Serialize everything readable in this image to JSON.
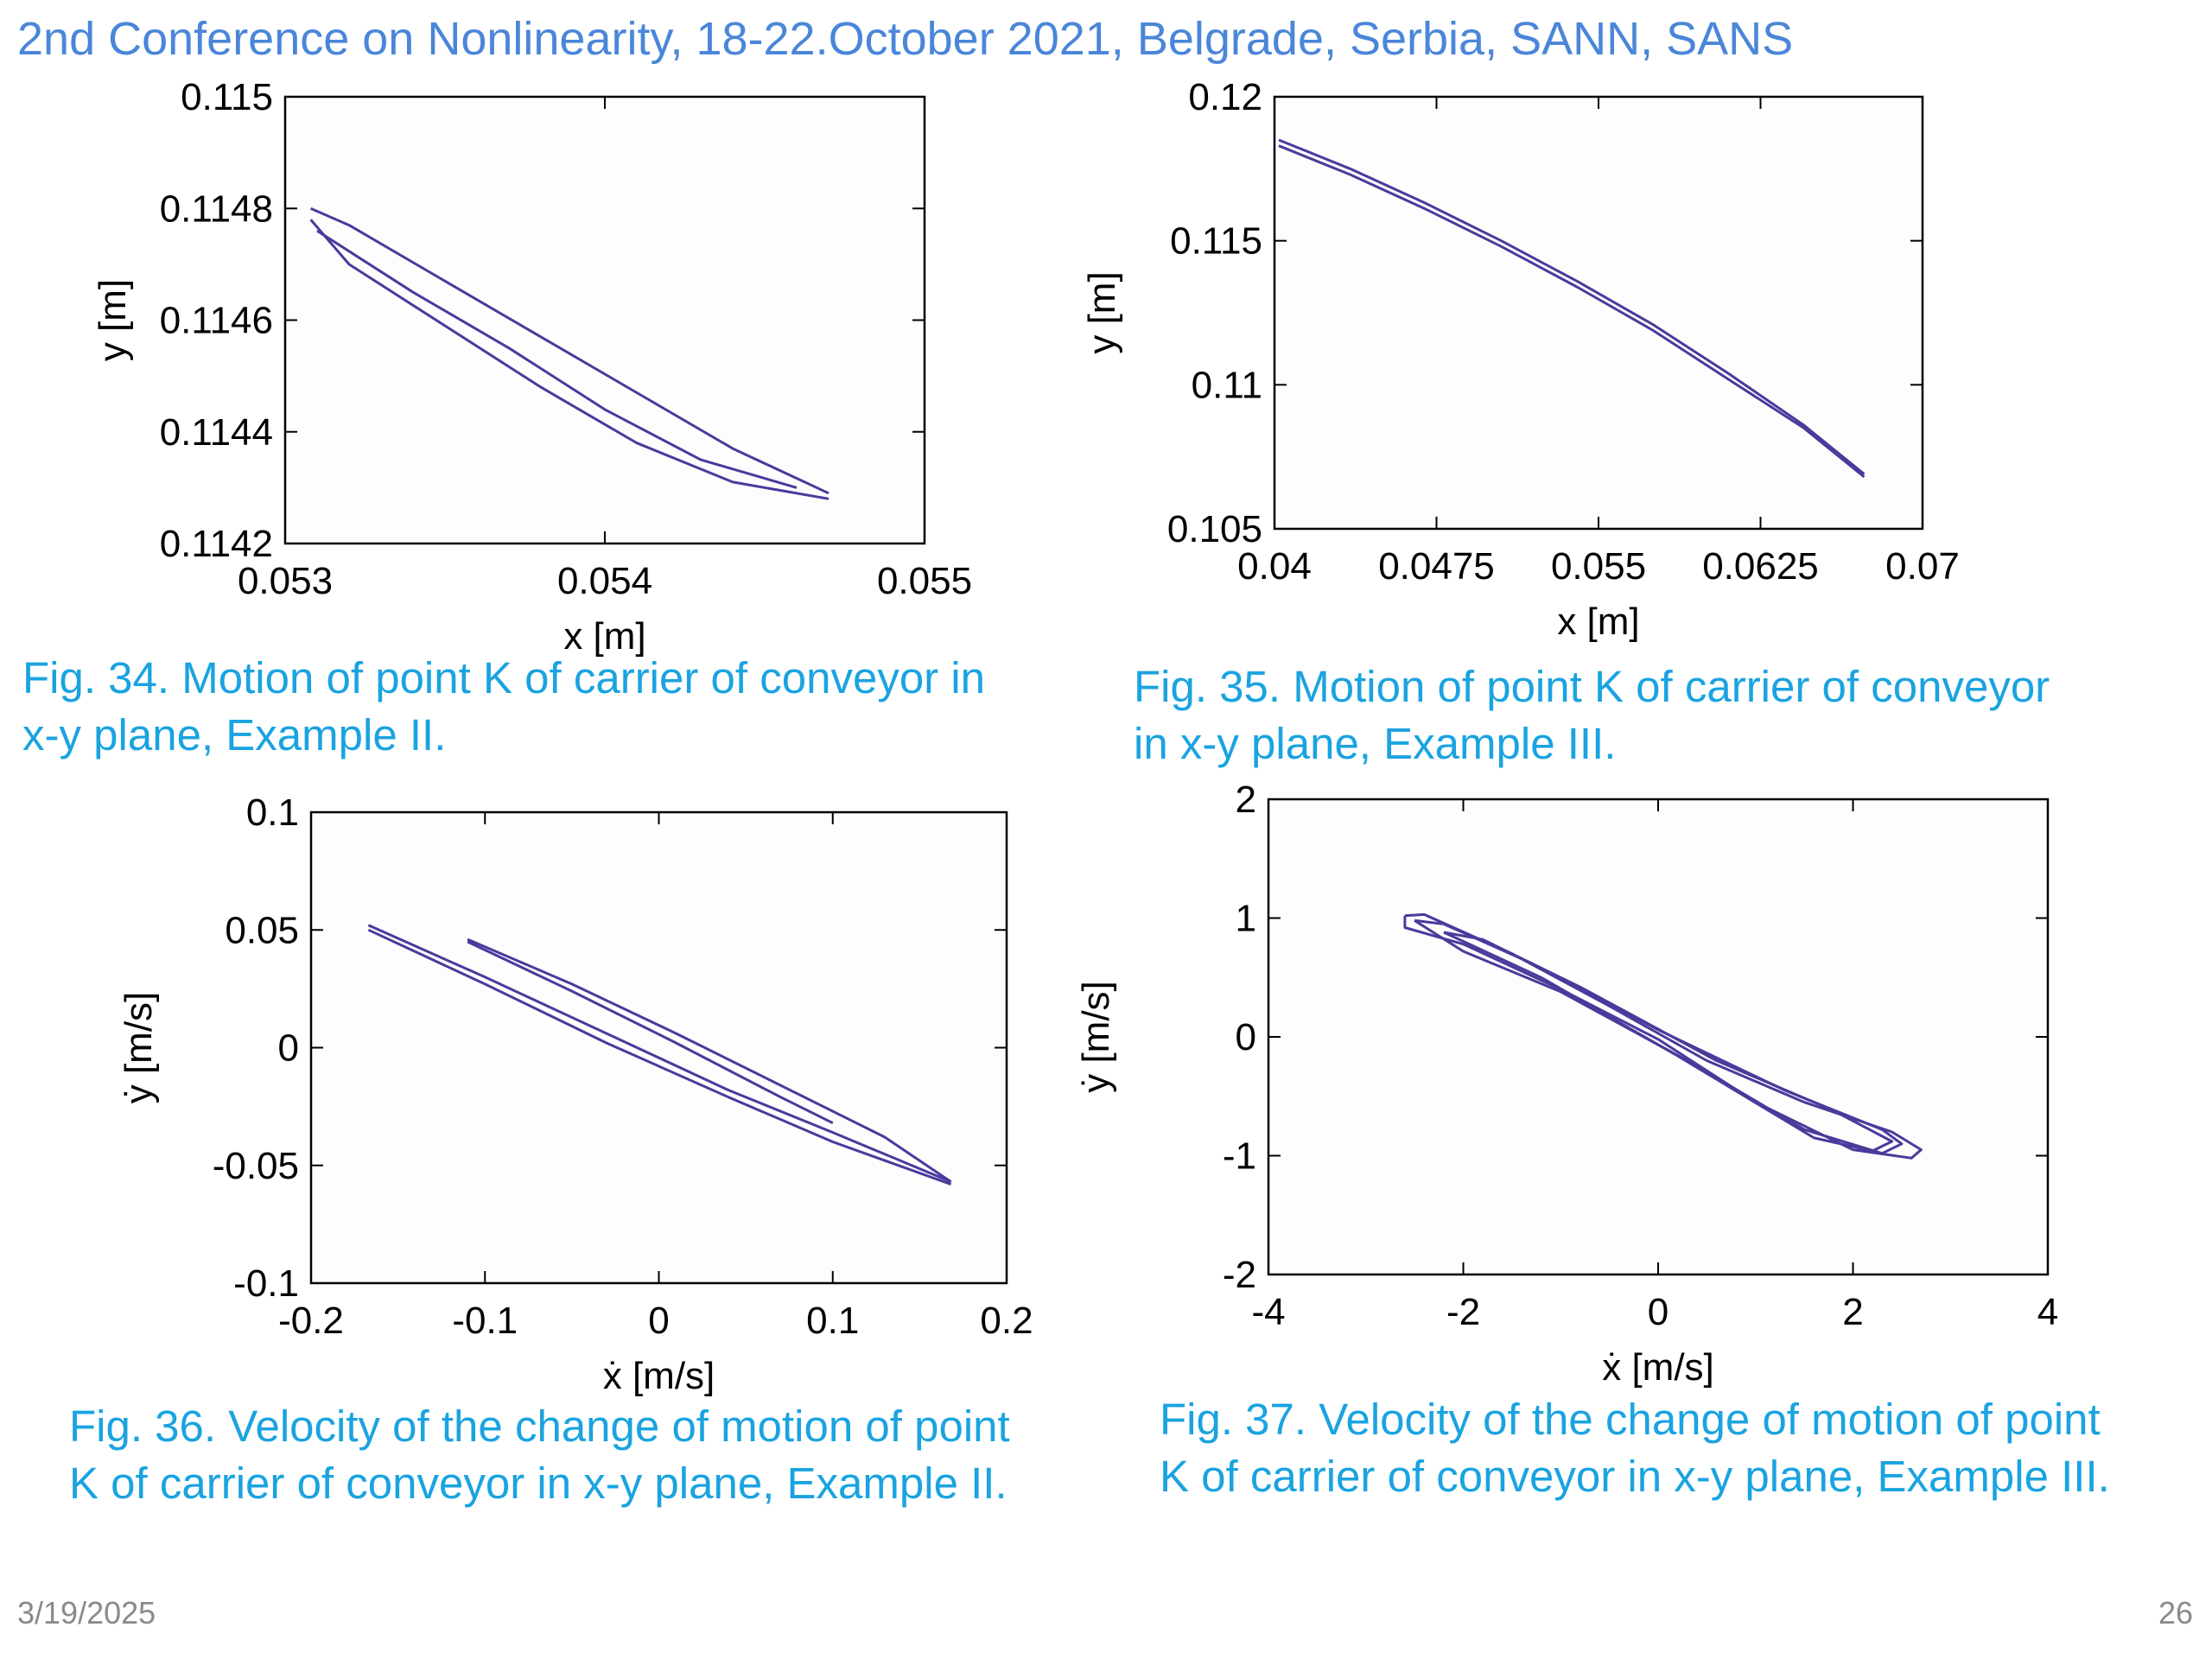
{
  "header": {
    "title": "2nd Conference on Nonlinearity, 18-22.October 2021, Belgrade, Serbia, SANN, SANS"
  },
  "captions": {
    "fig34_l1": "Fig. 34. Motion of point K of carrier of conveyor in",
    "fig34_l2": "x-y plane, Example II.",
    "fig35_l1": "Fig. 35. Motion of point K of carrier of conveyor",
    "fig35_l2": "in x-y plane, Example III.",
    "fig36_l1": "Fig. 36. Velocity of the change of motion of point",
    "fig36_l2": "K of carrier of conveyor in x-y plane, Example II.",
    "fig37_l1": "Fig. 37. Velocity of the change of motion of point",
    "fig37_l2": "K of carrier of conveyor in x-y plane, Example III."
  },
  "footer": {
    "date": "3/19/2025",
    "page": "26"
  },
  "chart_data": [
    {
      "id": "fig34",
      "type": "line",
      "xlabel": "x [m]",
      "ylabel": "y [m]",
      "xlim": [
        0.053,
        0.055
      ],
      "ylim": [
        0.1142,
        0.115
      ],
      "xticks": [
        0.053,
        0.054,
        0.055
      ],
      "xtick_labels": [
        "0.053",
        "0.054",
        "0.055"
      ],
      "yticks": [
        0.1142,
        0.1144,
        0.1146,
        0.1148,
        0.115
      ],
      "ytick_labels": [
        "0.1142",
        "0.1144",
        "0.1146",
        "0.1148",
        "0.115"
      ],
      "color": "#4a3a9c",
      "series": [
        {
          "x": [
            0.05308,
            0.0532,
            0.0535,
            0.0538,
            0.0541,
            0.0544,
            0.0547
          ],
          "y": [
            0.1148,
            0.11477,
            0.11467,
            0.11457,
            0.11447,
            0.11437,
            0.11429
          ]
        },
        {
          "x": [
            0.05308,
            0.0532,
            0.0535,
            0.0538,
            0.0541,
            0.0544,
            0.0547
          ],
          "y": [
            0.11478,
            0.1147,
            0.11459,
            0.11448,
            0.11438,
            0.11431,
            0.11428
          ]
        },
        {
          "x": [
            0.0531,
            0.0534,
            0.0537,
            0.054,
            0.0543,
            0.0546
          ],
          "y": [
            0.11476,
            0.11465,
            0.11455,
            0.11444,
            0.11435,
            0.1143
          ]
        }
      ]
    },
    {
      "id": "fig35",
      "type": "line",
      "xlabel": "x [m]",
      "ylabel": "y [m]",
      "xlim": [
        0.04,
        0.07
      ],
      "ylim": [
        0.105,
        0.12
      ],
      "xticks": [
        0.04,
        0.0475,
        0.055,
        0.0625,
        0.07
      ],
      "xtick_labels": [
        "0.04",
        "0.0475",
        "0.055",
        "0.0625",
        "0.07"
      ],
      "yticks": [
        0.105,
        0.11,
        0.115,
        0.12
      ],
      "ytick_labels": [
        "0.105",
        "0.11",
        "0.115",
        "0.12"
      ],
      "color": "#4a3a9c",
      "series": [
        {
          "x": [
            0.0402,
            0.0435,
            0.047,
            0.0505,
            0.054,
            0.0575,
            0.061,
            0.0645,
            0.0673
          ],
          "y": [
            0.1185,
            0.1175,
            0.1163,
            0.115,
            0.1136,
            0.1121,
            0.1104,
            0.1086,
            0.1069
          ]
        },
        {
          "x": [
            0.0402,
            0.0435,
            0.047,
            0.0505,
            0.054,
            0.0575,
            0.061,
            0.0645,
            0.0673
          ],
          "y": [
            0.1183,
            0.1173,
            0.1161,
            0.1148,
            0.1134,
            0.1119,
            0.1102,
            0.1085,
            0.1068
          ]
        }
      ]
    },
    {
      "id": "fig36",
      "type": "line",
      "xlabel": "ẋ [m/s]",
      "ylabel": "ẏ [m/s]",
      "xlim": [
        -0.2,
        0.2
      ],
      "ylim": [
        -0.1,
        0.1
      ],
      "xticks": [
        -0.2,
        -0.1,
        0,
        0.1,
        0.2
      ],
      "xtick_labels": [
        "-0.2",
        "-0.1",
        "0",
        "0.1",
        "0.2"
      ],
      "yticks": [
        -0.1,
        -0.05,
        0,
        0.05,
        0.1
      ],
      "ytick_labels": [
        "-0.1",
        "-0.05",
        "0",
        "0.05",
        "0.1"
      ],
      "color": "#4a3a9c",
      "series": [
        {
          "x": [
            -0.167,
            -0.1,
            -0.03,
            0.04,
            0.1,
            0.168
          ],
          "y": [
            0.052,
            0.03,
            0.006,
            -0.018,
            -0.036,
            -0.057
          ]
        },
        {
          "x": [
            -0.167,
            -0.1,
            -0.03,
            0.04,
            0.1,
            0.168
          ],
          "y": [
            0.05,
            0.027,
            0.002,
            -0.021,
            -0.04,
            -0.058
          ]
        },
        {
          "x": [
            -0.11,
            -0.05,
            0.01,
            0.07,
            0.13,
            0.168
          ],
          "y": [
            0.046,
            0.027,
            0.006,
            -0.016,
            -0.038,
            -0.057
          ]
        },
        {
          "x": [
            -0.11,
            -0.05,
            0.01,
            0.07,
            0.1
          ],
          "y": [
            0.045,
            0.024,
            0.002,
            -0.021,
            -0.032
          ]
        }
      ]
    },
    {
      "id": "fig37",
      "type": "line",
      "xlabel": "ẋ [m/s]",
      "ylabel": "ẏ [m/s]",
      "xlim": [
        -4,
        4
      ],
      "ylim": [
        -2,
        2
      ],
      "xticks": [
        -4,
        -2,
        0,
        2,
        4
      ],
      "xtick_labels": [
        "-4",
        "-2",
        "0",
        "2",
        "4"
      ],
      "yticks": [
        -2,
        -1,
        0,
        1,
        2
      ],
      "ytick_labels": [
        "-2",
        "-1",
        "0",
        "1",
        "2"
      ],
      "color": "#4a3a9c",
      "series": [
        {
          "x": [
            -2.6,
            -2.4,
            -1.5,
            -0.5,
            0.5,
            1.5,
            2.4,
            2.7,
            2.6,
            2.0,
            1.0,
            0.0,
            -1.0,
            -2.0,
            -2.6,
            -2.6
          ],
          "y": [
            1.02,
            1.03,
            0.7,
            0.26,
            -0.2,
            -0.55,
            -0.8,
            -0.95,
            -1.02,
            -0.95,
            -0.55,
            -0.02,
            0.4,
            0.78,
            0.92,
            1.02
          ]
        },
        {
          "x": [
            -2.5,
            -2.2,
            -1.3,
            0.0,
            1.3,
            2.3,
            2.5,
            2.3,
            1.5,
            0.3,
            -1.0,
            -2.0,
            -2.5
          ],
          "y": [
            0.98,
            0.95,
            0.62,
            0.06,
            -0.45,
            -0.78,
            -0.9,
            -0.98,
            -0.78,
            -0.2,
            0.38,
            0.72,
            0.98
          ]
        },
        {
          "x": [
            -2.2,
            -1.8,
            -0.8,
            0.6,
            1.8,
            2.4,
            2.2,
            1.6,
            0.2,
            -1.2,
            -2.2
          ],
          "y": [
            0.88,
            0.82,
            0.42,
            -0.2,
            -0.62,
            -0.88,
            -0.96,
            -0.85,
            -0.16,
            0.5,
            0.88
          ]
        }
      ]
    }
  ]
}
